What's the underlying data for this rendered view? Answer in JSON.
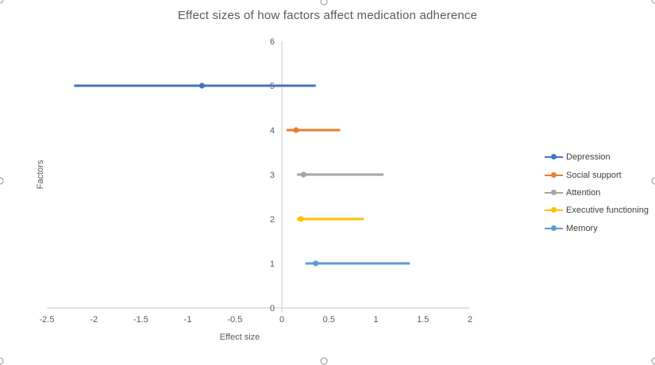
{
  "chart_data": {
    "type": "scatter",
    "subtype": "horizontal-interval-forest-plot",
    "title": "Effect sizes of how factors affect medication adherence",
    "xlabel": "Effect size",
    "ylabel": "Factors",
    "xlim": [
      -2.5,
      2
    ],
    "ylim": [
      0,
      6
    ],
    "x_ticks": [
      "-2.5",
      "-2",
      "-1.5",
      "-1",
      "-0.5",
      "0",
      "0.5",
      "1",
      "1.5",
      "2"
    ],
    "y_ticks": [
      "0",
      "1",
      "2",
      "3",
      "4",
      "5",
      "6"
    ],
    "grid": false,
    "legend_position": "right",
    "series": [
      {
        "name": "Depression",
        "y": 5,
        "point": -0.85,
        "low": -2.21,
        "high": 0.36,
        "color": "#4472C4"
      },
      {
        "name": "Social support",
        "y": 4,
        "point": 0.15,
        "low": 0.05,
        "high": 0.62,
        "color": "#ED7D31"
      },
      {
        "name": "Attention",
        "y": 3,
        "point": 0.23,
        "low": 0.16,
        "high": 1.08,
        "color": "#A5A5A5"
      },
      {
        "name": "Executive functioning",
        "y": 2,
        "point": 0.2,
        "low": 0.16,
        "high": 0.87,
        "color": "#FFC000"
      },
      {
        "name": "Memory",
        "y": 1,
        "point": 0.36,
        "low": 0.25,
        "high": 1.36,
        "color": "#5B9BD5"
      }
    ]
  },
  "style": {
    "axis_line_color": "#c9c9c9",
    "tick_text_color": "#595959",
    "title_text_color": "#595959",
    "legend_text_color": "#404040"
  }
}
